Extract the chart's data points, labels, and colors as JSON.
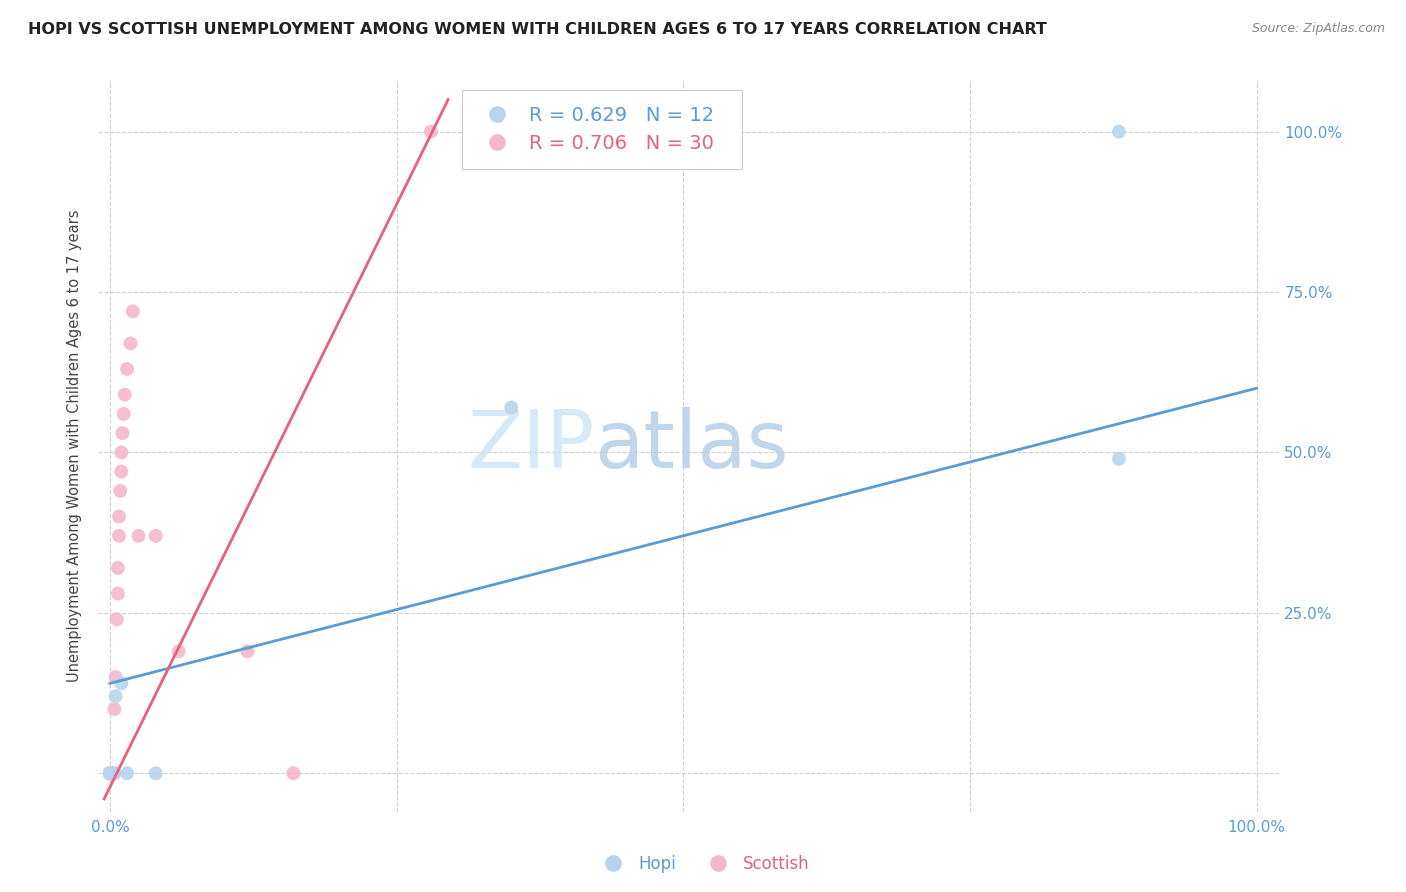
{
  "title": "HOPI VS SCOTTISH UNEMPLOYMENT AMONG WOMEN WITH CHILDREN AGES 6 TO 17 YEARS CORRELATION CHART",
  "source": "Source: ZipAtlas.com",
  "ylabel": "Unemployment Among Women with Children Ages 6 to 17 years",
  "xlim": [
    -0.01,
    1.02
  ],
  "ylim": [
    -0.06,
    1.08
  ],
  "xticks": [
    0.0,
    0.25,
    0.5,
    0.75,
    1.0
  ],
  "yticks": [
    0.0,
    0.25,
    0.5,
    0.75,
    1.0
  ],
  "xticklabels": [
    "0.0%",
    "",
    "",
    "",
    "100.0%"
  ],
  "yticklabels_right": [
    "",
    "25.0%",
    "50.0%",
    "75.0%",
    "100.0%"
  ],
  "watermark_left": "ZIP",
  "watermark_right": "atlas",
  "hopi_color": "#b8d4ed",
  "scottish_color": "#f4b8cc",
  "hopi_line_color": "#5b9bd5",
  "scottish_line_color": "#e8607a",
  "hopi_R": 0.629,
  "hopi_N": 12,
  "scottish_R": 0.706,
  "scottish_N": 30,
  "hopi_points": [
    [
      0.0,
      0.0
    ],
    [
      0.0,
      0.0
    ],
    [
      0.0,
      0.0
    ],
    [
      0.003,
      0.0
    ],
    [
      0.003,
      0.0
    ],
    [
      0.005,
      0.12
    ],
    [
      0.01,
      0.14
    ],
    [
      0.015,
      0.0
    ],
    [
      0.04,
      0.0
    ],
    [
      0.35,
      0.57
    ],
    [
      0.88,
      0.49
    ],
    [
      0.88,
      1.0
    ]
  ],
  "scottish_points": [
    [
      0.0,
      0.0
    ],
    [
      0.0,
      0.0
    ],
    [
      0.0,
      0.0
    ],
    [
      0.0,
      0.0
    ],
    [
      0.0,
      0.0
    ],
    [
      0.0,
      0.0
    ],
    [
      0.002,
      0.0
    ],
    [
      0.004,
      0.0
    ],
    [
      0.004,
      0.1
    ],
    [
      0.005,
      0.15
    ],
    [
      0.006,
      0.24
    ],
    [
      0.007,
      0.28
    ],
    [
      0.007,
      0.32
    ],
    [
      0.008,
      0.37
    ],
    [
      0.008,
      0.4
    ],
    [
      0.009,
      0.44
    ],
    [
      0.01,
      0.47
    ],
    [
      0.01,
      0.5
    ],
    [
      0.011,
      0.53
    ],
    [
      0.012,
      0.56
    ],
    [
      0.013,
      0.59
    ],
    [
      0.015,
      0.63
    ],
    [
      0.018,
      0.67
    ],
    [
      0.02,
      0.72
    ],
    [
      0.025,
      0.37
    ],
    [
      0.04,
      0.37
    ],
    [
      0.06,
      0.19
    ],
    [
      0.12,
      0.19
    ],
    [
      0.16,
      0.0
    ],
    [
      0.28,
      1.0
    ]
  ],
  "hopi_line": [
    [
      0.0,
      0.14
    ],
    [
      1.0,
      0.6
    ]
  ],
  "scottish_line": [
    [
      -0.005,
      -0.04
    ],
    [
      0.295,
      1.05
    ]
  ],
  "legend_fontsize": 14,
  "title_fontsize": 11.5,
  "tick_color": "#5b9bd5",
  "grid_color": "#d0d0d0",
  "background_color": "#ffffff",
  "marker_size": 100
}
